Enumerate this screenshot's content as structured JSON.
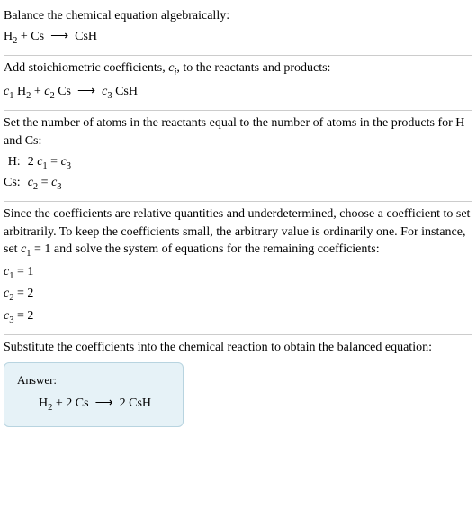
{
  "section1": {
    "title": "Balance the chemical equation algebraically:",
    "equation": "H₂ + Cs ⟶ CsH"
  },
  "section2": {
    "title_pre": "Add stoichiometric coefficients, ",
    "title_ci": "cᵢ",
    "title_post": ", to the reactants and products:",
    "equation": "c₁ H₂ + c₂ Cs ⟶ c₃ CsH"
  },
  "section3": {
    "title": "Set the number of atoms in the reactants equal to the number of atoms in the products for H and Cs:",
    "rows": [
      {
        "label": "H:",
        "eq": "2 c₁ = c₃"
      },
      {
        "label": "Cs:",
        "eq": "c₂ = c₃"
      }
    ]
  },
  "section4": {
    "title": "Since the coefficients are relative quantities and underdetermined, choose a coefficient to set arbitrarily. To keep the coefficients small, the arbitrary value is ordinarily one. For instance, set c₁ = 1 and solve the system of equations for the remaining coefficients:",
    "coefs": [
      "c₁ = 1",
      "c₂ = 2",
      "c₃ = 2"
    ]
  },
  "section5": {
    "title": "Substitute the coefficients into the chemical reaction to obtain the balanced equation:",
    "answer_label": "Answer:",
    "answer_eq": "H₂ + 2 Cs ⟶ 2 CsH"
  },
  "colors": {
    "text": "#000000",
    "divider": "#cccccc",
    "answer_bg": "#e6f2f7",
    "answer_border": "#b8d4e0"
  }
}
